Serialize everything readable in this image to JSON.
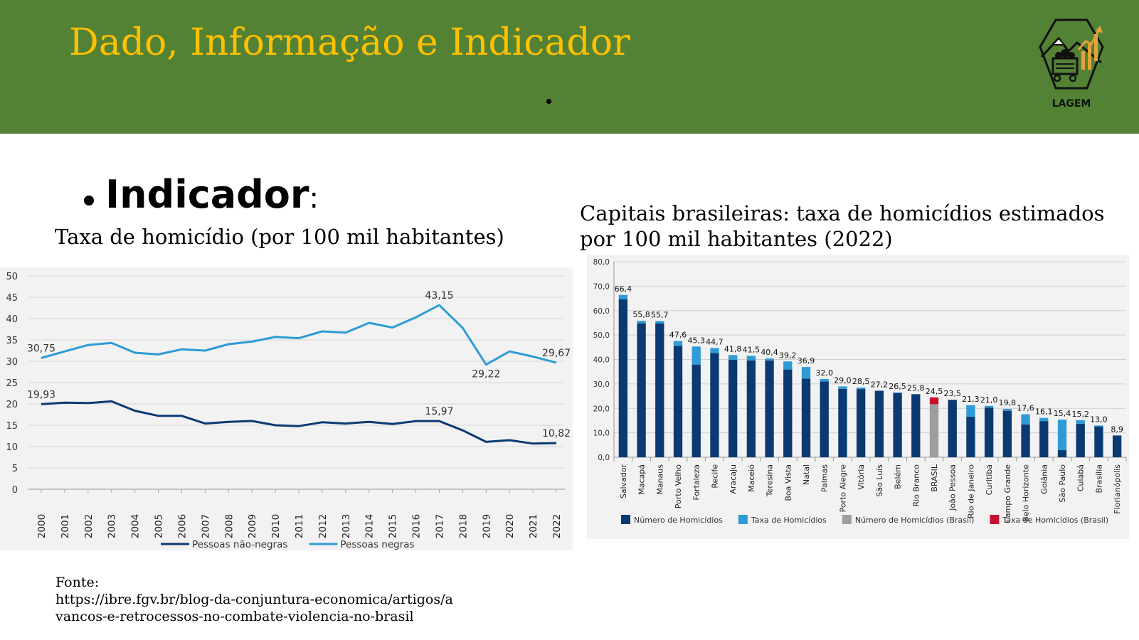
{
  "header": {
    "title": "Dado, Informação e Indicador",
    "logo_text": "LAGEM",
    "logo_icon": "mining-cart-chart-logo"
  },
  "bullet": {
    "label": "Indicador",
    "colon": ":"
  },
  "left_chart_title": "Taxa de homicídio (por 100 mil habitantes)",
  "right_chart_title": "Capitais brasileiras: taxa de homicídios estimados por 100 mil habitantes (2022)",
  "source": {
    "label": "Fonte:",
    "lines": [
      "https://ibre.fgv.br/blog-da-conjuntura-economica/artigos/a",
      "vancos-e-retrocessos-no-combate-violencia-no-brasil"
    ]
  },
  "colors": {
    "header_bg": "#548235",
    "title": "#FFC000",
    "navy": "#0B3A73",
    "light_blue": "#2F9BD6",
    "gray": "#9E9E9E",
    "red": "#C8102E"
  },
  "chart_data": [
    {
      "type": "line",
      "x": [
        "2000",
        "2001",
        "2002",
        "2003",
        "2004",
        "2005",
        "2006",
        "2007",
        "2008",
        "2009",
        "2010",
        "2011",
        "2012",
        "2013",
        "2014",
        "2015",
        "2016",
        "2017",
        "2018",
        "2019",
        "2020",
        "2021",
        "2022"
      ],
      "ylim": [
        0,
        50
      ],
      "yticks": [
        "0",
        "5",
        "10",
        "15",
        "20",
        "25",
        "30",
        "35",
        "40",
        "45",
        "50"
      ],
      "grid": true,
      "legend_position": "bottom",
      "series": [
        {
          "name": "Pessoas não-negras",
          "color": "#0B3A73",
          "values": [
            19.93,
            20.3,
            20.2,
            20.6,
            18.4,
            17.2,
            17.2,
            15.4,
            15.8,
            16.0,
            15.0,
            14.8,
            15.7,
            15.4,
            15.8,
            15.3,
            15.97,
            15.97,
            13.8,
            11.1,
            11.5,
            10.7,
            10.82
          ],
          "labels": [
            {
              "index": 0,
              "text": "19,93",
              "pos": "above"
            },
            {
              "index": 17,
              "text": "15,97",
              "pos": "above"
            },
            {
              "index": 22,
              "text": "10,82",
              "pos": "above"
            }
          ]
        },
        {
          "name": "Pessoas negras",
          "color": "#2F9BD6",
          "values": [
            30.75,
            32.3,
            33.8,
            34.3,
            32.0,
            31.6,
            32.8,
            32.5,
            34.0,
            34.6,
            35.7,
            35.4,
            37.0,
            36.7,
            39.0,
            37.9,
            40.3,
            43.15,
            37.8,
            29.22,
            32.3,
            31.1,
            29.67
          ],
          "labels": [
            {
              "index": 0,
              "text": "30,75",
              "pos": "above"
            },
            {
              "index": 17,
              "text": "43,15",
              "pos": "above"
            },
            {
              "index": 19,
              "text": "29,22",
              "pos": "below"
            },
            {
              "index": 22,
              "text": "29,67",
              "pos": "above"
            }
          ]
        }
      ]
    },
    {
      "type": "bar",
      "stacked": true,
      "categories": [
        "Salvador",
        "Macapá",
        "Manaus",
        "Porto Velho",
        "Fortaleza",
        "Recife",
        "Aracaju",
        "Maceió",
        "Teresina",
        "Boa Vista",
        "Natal",
        "Palmas",
        "Porto Alegre",
        "Vitória",
        "São Luís",
        "Belém",
        "Rio Branco",
        "BRASIL",
        "João Pessoa",
        "Rio de Janeiro",
        "Curitiba",
        "Campo Grande",
        "Belo Horizonte",
        "Goiânia",
        "São Paulo",
        "Cuiabá",
        "Brasília",
        "Florianópolis"
      ],
      "bar_labels": [
        "66,4",
        "55,8",
        "55,7",
        "47,6",
        "45,3",
        "44,7",
        "41,8",
        "41,5",
        "40,4",
        "39,2",
        "36,9",
        "32,0",
        "29,0",
        "28,5",
        "27,2",
        "26,5",
        "25,8",
        "24,5",
        "23,5",
        "21,3",
        "21,0",
        "19,8",
        "17,6",
        "16,1",
        "15,4",
        "15,2",
        "13,0",
        "8,9"
      ],
      "ylim": [
        0,
        80
      ],
      "yticks": [
        "0,0",
        "10,0",
        "20,0",
        "30,0",
        "40,0",
        "50,0",
        "60,0",
        "70,0",
        "80,0"
      ],
      "grid": true,
      "legend_position": "bottom",
      "series": [
        {
          "name": "Número de Homicídios",
          "color": "#0B3A73",
          "values": [
            64.6,
            54.8,
            54.7,
            45.6,
            37.9,
            42.6,
            39.9,
            39.6,
            39.6,
            35.9,
            32.2,
            31.0,
            28.0,
            27.9,
            27.2,
            26.3,
            25.8,
            0,
            23.5,
            16.6,
            20.3,
            19.0,
            13.4,
            14.8,
            2.9,
            13.7,
            12.6,
            8.9
          ]
        },
        {
          "name": "Taxa de Homicídios",
          "color": "#2F9BD6",
          "values": [
            1.8,
            1.0,
            1.0,
            2.0,
            7.4,
            2.1,
            1.9,
            1.9,
            0.8,
            3.3,
            4.7,
            1.0,
            1.0,
            0.6,
            0,
            0.2,
            0,
            0,
            0,
            4.7,
            0.7,
            0.8,
            4.2,
            1.3,
            12.5,
            1.5,
            0.4,
            0
          ]
        },
        {
          "name": "Número de Homicídios (Brasil)",
          "color": "#9E9E9E",
          "values": [
            0,
            0,
            0,
            0,
            0,
            0,
            0,
            0,
            0,
            0,
            0,
            0,
            0,
            0,
            0,
            0,
            0,
            21.7,
            0,
            0,
            0,
            0,
            0,
            0,
            0,
            0,
            0,
            0
          ]
        },
        {
          "name": "Taxa de Homicídios (Brasil)",
          "color": "#C8102E",
          "values": [
            0,
            0,
            0,
            0,
            0,
            0,
            0,
            0,
            0,
            0,
            0,
            0,
            0,
            0,
            0,
            0,
            0,
            2.8,
            0,
            0,
            0,
            0,
            0,
            0,
            0,
            0,
            0,
            0
          ]
        }
      ]
    }
  ]
}
